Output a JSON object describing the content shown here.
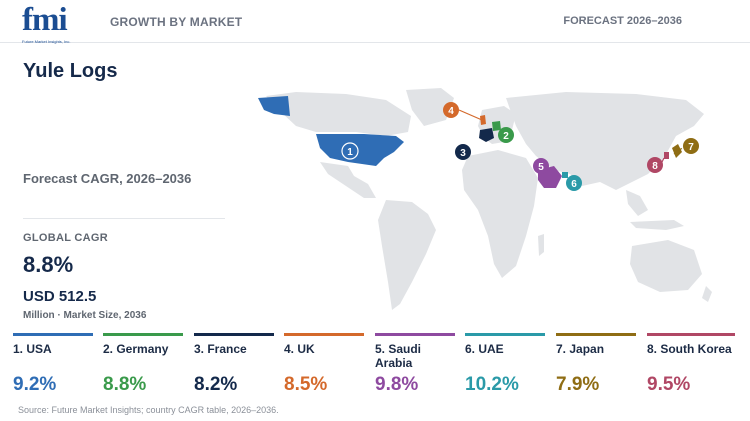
{
  "header": {
    "logo_text": "fmi",
    "logo_tagline": "Future Market Insights, Inc.",
    "section_label": "GROWTH BY MARKET",
    "forecast_label": "FORECAST 2026–2036"
  },
  "summary": {
    "title": "Yule Logs",
    "subtitle": "Forecast CAGR, 2026–2036",
    "global_label": "GLOBAL CAGR",
    "global_cagr": "8.8%",
    "market_size": "USD 512.5",
    "market_caption": "Million · Market Size, 2036"
  },
  "markers": [
    {
      "num": "1",
      "color": "#2f6db5"
    },
    {
      "num": "2",
      "color": "#3a9a4b"
    },
    {
      "num": "3",
      "color": "#13294b"
    },
    {
      "num": "4",
      "color": "#d4692b"
    },
    {
      "num": "5",
      "color": "#8e4aa0"
    },
    {
      "num": "6",
      "color": "#2a9aa8"
    },
    {
      "num": "7",
      "color": "#8f6d14"
    },
    {
      "num": "8",
      "color": "#b04765"
    }
  ],
  "countries": [
    {
      "name": "1. USA",
      "cagr": "9.2%",
      "color": "#2f6db5"
    },
    {
      "name": "2. Germany",
      "cagr": "8.8%",
      "color": "#3a9a4b"
    },
    {
      "name": "3. France",
      "cagr": "8.2%",
      "color": "#13294b"
    },
    {
      "name": "4. UK",
      "cagr": "8.5%",
      "color": "#d4692b"
    },
    {
      "name": "5. Saudi Arabia",
      "cagr": "9.8%",
      "color": "#8e4aa0"
    },
    {
      "name": "6. UAE",
      "cagr": "10.2%",
      "color": "#2a9aa8"
    },
    {
      "name": "7. Japan",
      "cagr": "7.9%",
      "color": "#8f6d14"
    },
    {
      "name": "8. South Korea",
      "cagr": "9.5%",
      "color": "#b04765"
    }
  ],
  "source": "Source: Future Market Insights; country CAGR table, 2026–2036."
}
